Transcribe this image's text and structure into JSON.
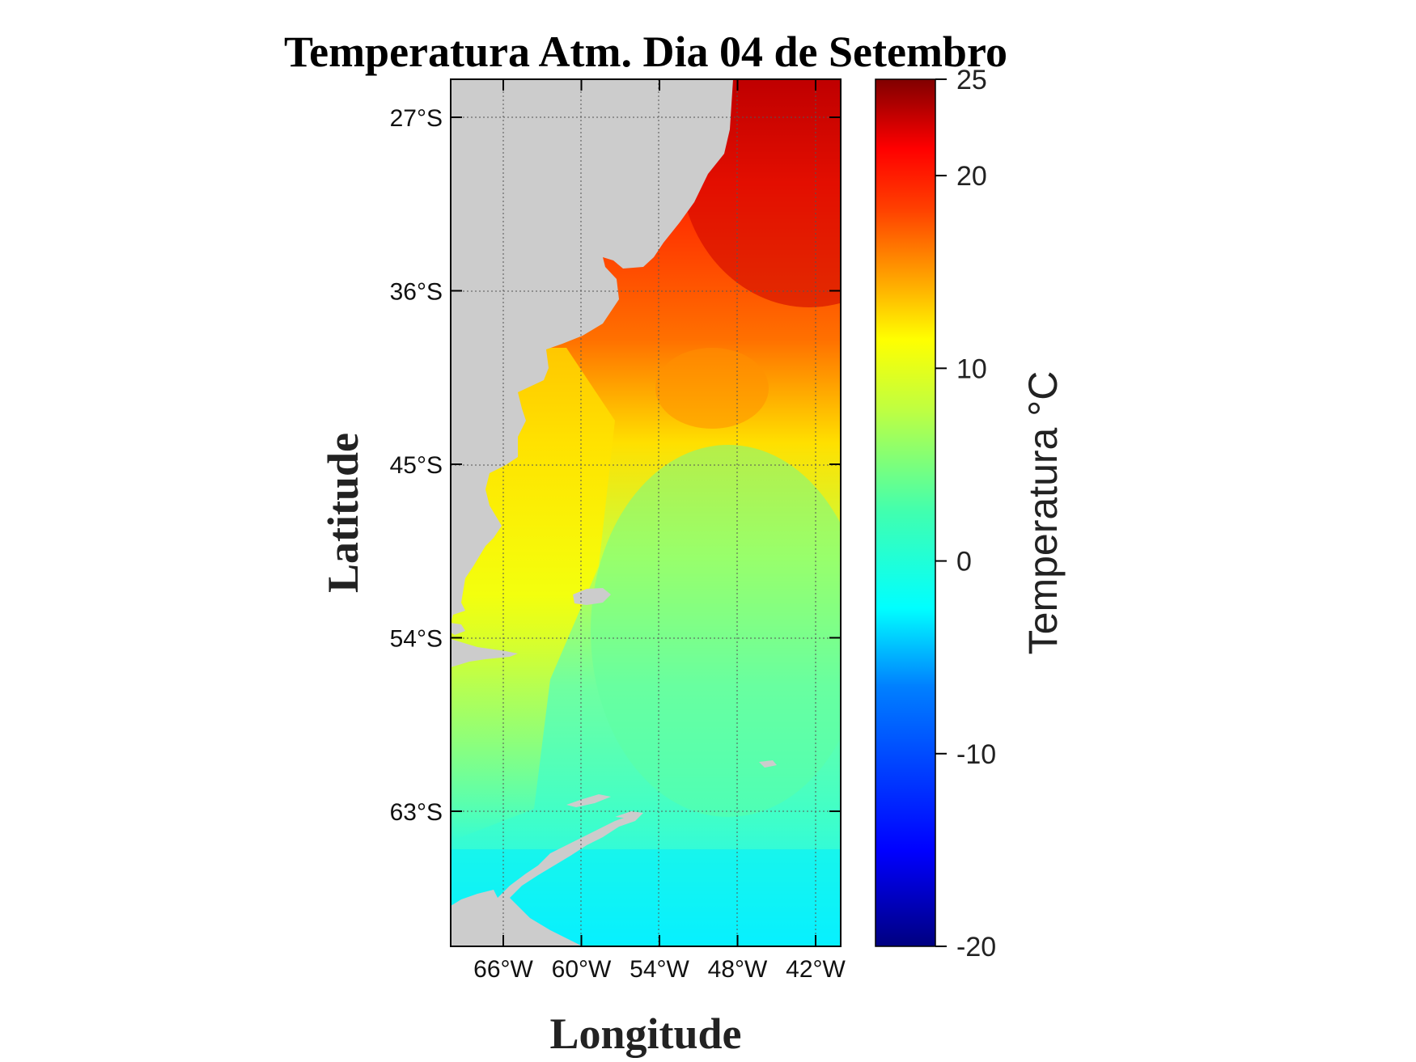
{
  "chart_data": {
    "type": "heatmap",
    "title": "Temperatura Atm. Dia 04 de Setembro",
    "xlabel": "Longitude",
    "ylabel": "Latitude",
    "x_ticks": [
      {
        "value": -66,
        "label": "66°W"
      },
      {
        "value": -60,
        "label": "60°W"
      },
      {
        "value": -54,
        "label": "54°W"
      },
      {
        "value": -48,
        "label": "48°W"
      },
      {
        "value": -42,
        "label": "42°W"
      }
    ],
    "y_ticks": [
      {
        "value": -27,
        "label": "27°S"
      },
      {
        "value": -36,
        "label": "36°S"
      },
      {
        "value": -45,
        "label": "45°S"
      },
      {
        "value": -54,
        "label": "54°S"
      },
      {
        "value": -63,
        "label": "63°S"
      }
    ],
    "xlim": [
      -70,
      -40
    ],
    "ylim": [
      -70,
      -25
    ],
    "grid": true,
    "colorbar": {
      "label": "Temperatura °C",
      "colormap": "jet",
      "range": [
        -20,
        25
      ],
      "ticks": [
        {
          "value": 25,
          "label": "25"
        },
        {
          "value": 20,
          "label": "20"
        },
        {
          "value": 10,
          "label": "10"
        },
        {
          "value": 0,
          "label": "0"
        },
        {
          "value": -10,
          "label": "-10"
        },
        {
          "value": -20,
          "label": "-20"
        }
      ]
    },
    "land_color": "#cccccc",
    "field_summary": [
      {
        "region": "north-east near 25-33°S",
        "approx_value": 20
      },
      {
        "region": "central 36-42°S",
        "approx_value": 12
      },
      {
        "region": "Patagonian shelf 45-55°S",
        "approx_value": 7
      },
      {
        "region": "open ocean 45-60°S",
        "approx_value": 2
      },
      {
        "region": "south near 65-70°S",
        "approx_value": -3
      }
    ]
  }
}
